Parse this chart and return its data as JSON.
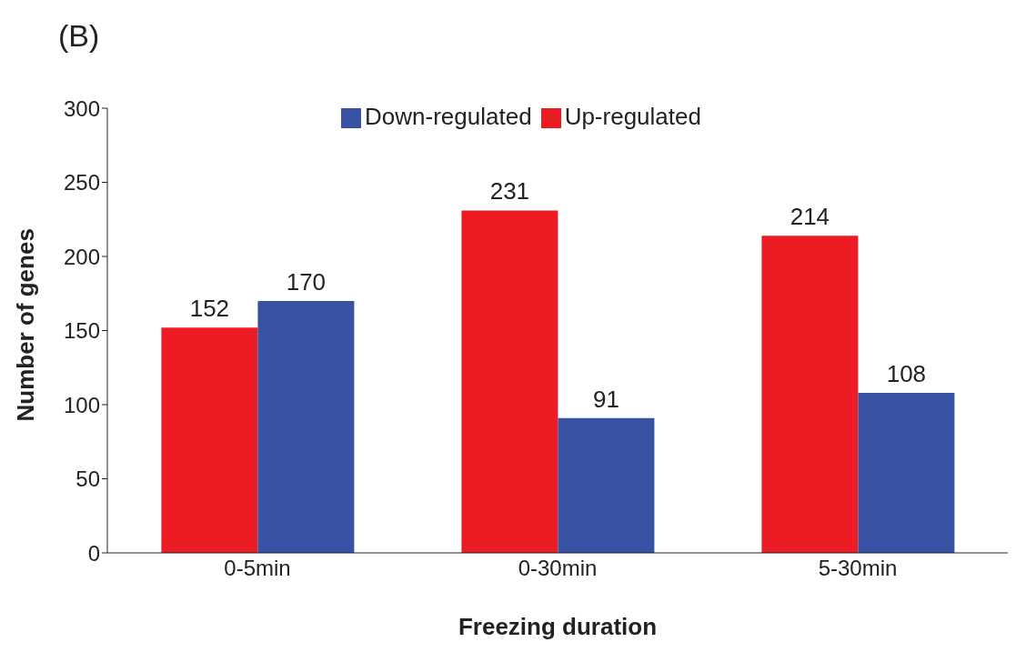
{
  "chart_data": {
    "type": "bar",
    "title": "(B)",
    "xlabel": "Freezing duration",
    "ylabel": "Number of genes",
    "categories": [
      "0-5min",
      "0-30min",
      "5-30min"
    ],
    "series": [
      {
        "name": "Up-regulated",
        "color": "#ed1c24",
        "values": [
          152,
          231,
          214
        ]
      },
      {
        "name": "Down-regulated",
        "color": "#3953a4",
        "values": [
          170,
          91,
          108
        ]
      }
    ],
    "ylim": [
      0,
      300
    ],
    "yticks": [
      0,
      50,
      100,
      150,
      200,
      250,
      300
    ],
    "data_labels": true,
    "grid": false,
    "legend": "top"
  }
}
